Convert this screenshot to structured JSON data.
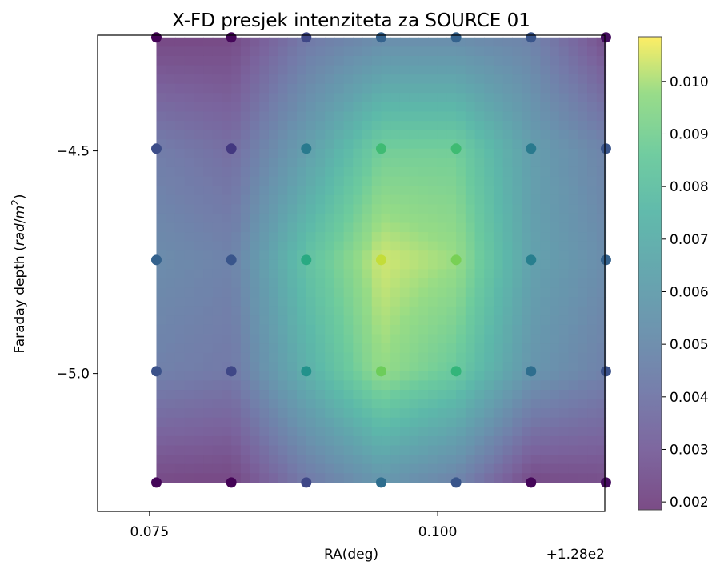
{
  "chart_data": {
    "type": "heatmap",
    "title": "X-FD presjek intenziteta za SOURCE 01",
    "xlabel": "RA(deg)",
    "ylabel": "Faraday depth (rad/m²)",
    "x_offset_label": "+1.28e2",
    "x_ticks": [
      {
        "value": 0.075,
        "label": "0.075"
      },
      {
        "value": 0.1,
        "label": "0.100"
      }
    ],
    "y_ticks": [
      {
        "value": -4.5,
        "label": "−4.5"
      },
      {
        "value": -5.0,
        "label": "−5.0"
      }
    ],
    "xlim": [
      128.0705,
      128.1145
    ],
    "ylim": [
      -5.31,
      -4.24
    ],
    "grid": false,
    "colormap": "viridis",
    "colorbar": {
      "range": [
        0.00185,
        0.01085
      ],
      "ticks": [
        0.002,
        0.003,
        0.004,
        0.005,
        0.006,
        0.007,
        0.008,
        0.009,
        0.01
      ],
      "tick_labels": [
        "0.002",
        "0.003",
        "0.004",
        "0.005",
        "0.006",
        "0.007",
        "0.008",
        "0.009",
        "0.010"
      ]
    },
    "x": [
      128.0756,
      128.0821,
      128.0886,
      128.0951,
      128.1016,
      128.1081,
      128.1146
    ],
    "y": [
      -4.245,
      -4.495,
      -4.745,
      -4.995,
      -5.245
    ],
    "points": [
      [
        0.0019,
        0.002,
        0.004,
        0.005,
        0.005,
        0.0045,
        0.0022
      ],
      [
        0.0042,
        0.0035,
        0.006,
        0.0088,
        0.0088,
        0.006,
        0.0045
      ],
      [
        0.005,
        0.0045,
        0.008,
        0.0104,
        0.0098,
        0.0062,
        0.005
      ],
      [
        0.0044,
        0.004,
        0.007,
        0.0097,
        0.0085,
        0.0055,
        0.0044
      ],
      [
        0.002,
        0.0019,
        0.004,
        0.0055,
        0.0045,
        0.002,
        0.0022
      ]
    ]
  }
}
